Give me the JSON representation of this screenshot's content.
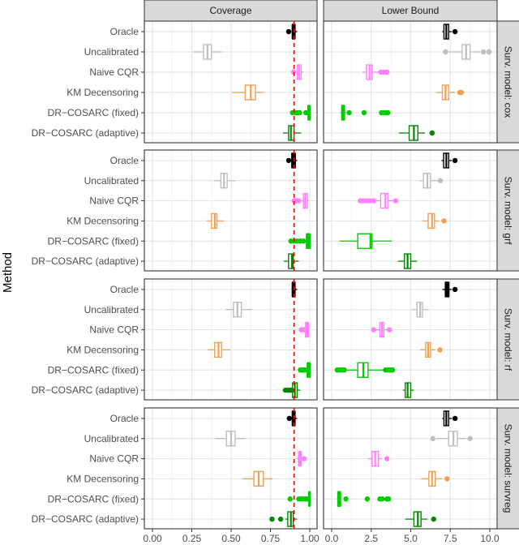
{
  "chart_data": {
    "type": "boxplot",
    "title": "",
    "ylabel": "Method",
    "xlabel": "",
    "methods": [
      "Oracle",
      "Uncalibrated",
      "Naive CQR",
      "KM Decensoring",
      "DR−COSARC (fixed)",
      "DR−COSARC (adaptive)"
    ],
    "method_colors": {
      "Oracle": "#000000",
      "Uncalibrated": "#bebebe",
      "Naive CQR": "#ff80ff",
      "KM Decensoring": "#f0a050",
      "DR−COSARC (fixed)": "#00cc00",
      "DR−COSARC (adaptive)": "#008800"
    },
    "columns": [
      {
        "label": "Coverage",
        "xlim": [
          -0.05,
          1.05
        ],
        "ticks": [
          0.0,
          0.25,
          0.5,
          0.75,
          1.0
        ],
        "tick_labels": [
          "0.00",
          "0.25",
          "0.50",
          "0.75",
          "1.00"
        ],
        "reference_line": {
          "x": 0.9,
          "color": "#ff0000",
          "style": "dashed"
        }
      },
      {
        "label": "Lower Bound",
        "xlim": [
          -0.5,
          10.5
        ],
        "ticks": [
          0.0,
          2.5,
          5.0,
          7.5,
          10.0
        ],
        "tick_labels": [
          "0.0",
          "2.5",
          "5.0",
          "7.5",
          "10.0"
        ]
      }
    ],
    "rows": [
      {
        "label": "Surv. model: cox",
        "coverage": [
          {
            "method": "Oracle",
            "wlo": 0.885,
            "q1": 0.89,
            "med": 0.897,
            "q3": 0.905,
            "whi": 0.92,
            "outliers": [
              0.866
            ]
          },
          {
            "method": "Uncalibrated",
            "wlo": 0.26,
            "q1": 0.325,
            "med": 0.35,
            "q3": 0.375,
            "whi": 0.44,
            "outliers": []
          },
          {
            "method": "Naive CQR",
            "wlo": 0.91,
            "q1": 0.92,
            "med": 0.932,
            "q3": 0.945,
            "whi": 0.96,
            "outliers": [
              0.897
            ]
          },
          {
            "method": "KM Decensoring",
            "wlo": 0.505,
            "q1": 0.59,
            "med": 0.625,
            "q3": 0.655,
            "whi": 0.705,
            "outliers": []
          },
          {
            "method": "DR−COSARC (fixed)",
            "wlo": 0.985,
            "q1": 0.99,
            "med": 0.995,
            "q3": 1.0,
            "whi": 1.0,
            "outliers": [
              0.89,
              0.905,
              0.92,
              0.935,
              0.975
            ]
          },
          {
            "method": "DR−COSARC (adaptive)",
            "wlo": 0.83,
            "q1": 0.865,
            "med": 0.88,
            "q3": 0.9,
            "whi": 0.945,
            "outliers": []
          }
        ],
        "lower_bound": [
          {
            "method": "Oracle",
            "wlo": 7.0,
            "q1": 7.1,
            "med": 7.25,
            "q3": 7.4,
            "whi": 7.6,
            "outliers": [
              7.8
            ]
          },
          {
            "method": "Uncalibrated",
            "wlo": 7.35,
            "q1": 8.25,
            "med": 8.5,
            "q3": 8.75,
            "whi": 9.4,
            "outliers": [
              7.2,
              9.6,
              9.95
            ]
          },
          {
            "method": "Naive CQR",
            "wlo": 1.95,
            "q1": 2.2,
            "med": 2.4,
            "q3": 2.55,
            "whi": 2.95,
            "outliers": [
              3.1,
              3.25,
              3.4,
              3.5
            ]
          },
          {
            "method": "KM Decensoring",
            "wlo": 6.6,
            "q1": 7.0,
            "med": 7.2,
            "q3": 7.4,
            "whi": 7.8,
            "outliers": [
              8.1,
              8.2
            ]
          },
          {
            "method": "DR−COSARC (fixed)",
            "wlo": 0.55,
            "q1": 0.65,
            "med": 0.72,
            "q3": 0.8,
            "whi": 0.9,
            "outliers": [
              1.1,
              2.05,
              3.15,
              3.3,
              3.45,
              3.55
            ]
          },
          {
            "method": "DR−COSARC (adaptive)",
            "wlo": 4.25,
            "q1": 4.9,
            "med": 5.2,
            "q3": 5.45,
            "whi": 5.9,
            "outliers": [
              6.35
            ]
          }
        ]
      },
      {
        "label": "Surv. model: grf",
        "coverage": [
          {
            "method": "Oracle",
            "wlo": 0.885,
            "q1": 0.887,
            "med": 0.897,
            "q3": 0.907,
            "whi": 0.92,
            "outliers": [
              0.866
            ]
          },
          {
            "method": "Uncalibrated",
            "wlo": 0.39,
            "q1": 0.435,
            "med": 0.455,
            "q3": 0.475,
            "whi": 0.53,
            "outliers": []
          },
          {
            "method": "Naive CQR",
            "wlo": 0.95,
            "q1": 0.96,
            "med": 0.972,
            "q3": 0.985,
            "whi": 0.995,
            "outliers": [
              0.9,
              0.91,
              0.92,
              0.93
            ]
          },
          {
            "method": "KM Decensoring",
            "wlo": 0.345,
            "q1": 0.375,
            "med": 0.397,
            "q3": 0.41,
            "whi": 0.455,
            "outliers": []
          },
          {
            "method": "DR−COSARC (fixed)",
            "wlo": 0.975,
            "q1": 0.98,
            "med": 0.99,
            "q3": 1.0,
            "whi": 1.0,
            "outliers": [
              0.88,
              0.9,
              0.92,
              0.94,
              0.96
            ]
          },
          {
            "method": "DR−COSARC (adaptive)",
            "wlo": 0.835,
            "q1": 0.865,
            "med": 0.887,
            "q3": 0.895,
            "whi": 0.93,
            "outliers": []
          }
        ],
        "lower_bound": [
          {
            "method": "Oracle",
            "wlo": 6.95,
            "q1": 7.08,
            "med": 7.25,
            "q3": 7.4,
            "whi": 7.6,
            "outliers": [
              7.8
            ]
          },
          {
            "method": "Uncalibrated",
            "wlo": 5.54,
            "q1": 5.8,
            "med": 6.05,
            "q3": 6.25,
            "whi": 6.7,
            "outliers": [
              6.87
            ]
          },
          {
            "method": "Naive CQR",
            "wlo": 2.8,
            "q1": 3.1,
            "med": 3.4,
            "q3": 3.55,
            "whi": 3.95,
            "outliers": [
              1.8,
              2.0,
              2.2,
              2.4,
              2.65,
              4.05
            ]
          },
          {
            "method": "KM Decensoring",
            "wlo": 5.75,
            "q1": 6.1,
            "med": 6.35,
            "q3": 6.5,
            "whi": 6.8,
            "outliers": [
              7.1
            ]
          },
          {
            "method": "DR−COSARC (fixed)",
            "wlo": 0.5,
            "q1": 1.65,
            "med": 2.45,
            "q3": 2.55,
            "whi": 3.8,
            "outliers": []
          },
          {
            "method": "DR−COSARC (adaptive)",
            "wlo": 4.2,
            "q1": 4.6,
            "med": 4.8,
            "q3": 5.0,
            "whi": 5.4,
            "outliers": []
          }
        ]
      },
      {
        "label": "Surv. model: rf",
        "coverage": [
          {
            "method": "Oracle",
            "wlo": 0.885,
            "q1": 0.89,
            "med": 0.897,
            "q3": 0.905,
            "whi": 0.92,
            "outliers": []
          },
          {
            "method": "Uncalibrated",
            "wlo": 0.465,
            "q1": 0.515,
            "med": 0.54,
            "q3": 0.565,
            "whi": 0.63,
            "outliers": []
          },
          {
            "method": "Naive CQR",
            "wlo": 0.97,
            "q1": 0.975,
            "med": 0.982,
            "q3": 0.99,
            "whi": 0.995,
            "outliers": [
              0.945,
              0.955,
              0.965
            ]
          },
          {
            "method": "KM Decensoring",
            "wlo": 0.35,
            "q1": 0.395,
            "med": 0.42,
            "q3": 0.44,
            "whi": 0.495,
            "outliers": []
          },
          {
            "method": "DR−COSARC (fixed)",
            "wlo": 0.98,
            "q1": 0.985,
            "med": 0.993,
            "q3": 1.0,
            "whi": 1.0,
            "outliers": [
              0.94,
              0.95,
              0.96,
              0.97
            ]
          },
          {
            "method": "DR−COSARC (adaptive)",
            "wlo": 0.887,
            "q1": 0.89,
            "med": 0.905,
            "q3": 0.92,
            "whi": 0.94,
            "outliers": [
              0.845,
              0.86,
              0.875,
              0.885
            ]
          }
        ],
        "lower_bound": [
          {
            "method": "Oracle",
            "wlo": 7.0,
            "q1": 7.2,
            "med": 7.3,
            "q3": 7.4,
            "whi": 7.6,
            "outliers": [
              7.8
            ]
          },
          {
            "method": "Uncalibrated",
            "wlo": 5.1,
            "q1": 5.4,
            "med": 5.6,
            "q3": 5.75,
            "whi": 6.15,
            "outliers": []
          },
          {
            "method": "Naive CQR",
            "wlo": 2.8,
            "q1": 3.05,
            "med": 3.18,
            "q3": 3.3,
            "whi": 3.55,
            "outliers": [
              2.65,
              3.65
            ]
          },
          {
            "method": "KM Decensoring",
            "wlo": 5.6,
            "q1": 5.95,
            "med": 6.1,
            "q3": 6.25,
            "whi": 6.55,
            "outliers": [
              6.85
            ]
          },
          {
            "method": "DR−COSARC (fixed)",
            "wlo": 0.9,
            "q1": 1.65,
            "med": 2.0,
            "q3": 2.3,
            "whi": 3.3,
            "outliers": [
              0.35,
              0.5,
              0.65,
              0.8,
              3.4,
              3.55,
              3.7,
              3.85
            ]
          },
          {
            "method": "DR−COSARC (adaptive)",
            "wlo": 4.5,
            "q1": 4.65,
            "med": 4.8,
            "q3": 5.0,
            "whi": 5.2,
            "outliers": []
          }
        ]
      },
      {
        "label": "Surv. model: survreg",
        "coverage": [
          {
            "method": "Oracle",
            "wlo": 0.885,
            "q1": 0.89,
            "med": 0.897,
            "q3": 0.905,
            "whi": 0.92,
            "outliers": [
              0.87
            ]
          },
          {
            "method": "Uncalibrated",
            "wlo": 0.4,
            "q1": 0.47,
            "med": 0.5,
            "q3": 0.525,
            "whi": 0.59,
            "outliers": []
          },
          {
            "method": "Naive CQR",
            "wlo": 0.917,
            "q1": 0.93,
            "med": 0.937,
            "q3": 0.945,
            "whi": 0.955,
            "outliers": [
              0.965
            ]
          },
          {
            "method": "KM Decensoring",
            "wlo": 0.57,
            "q1": 0.645,
            "med": 0.675,
            "q3": 0.705,
            "whi": 0.765,
            "outliers": []
          },
          {
            "method": "DR−COSARC (fixed)",
            "wlo": 0.99,
            "q1": 0.995,
            "med": 0.998,
            "q3": 1.0,
            "whi": 1.0,
            "outliers": [
              0.875,
              0.93,
              0.945,
              0.96,
              0.975,
              0.98
            ]
          },
          {
            "method": "DR−COSARC (adaptive)",
            "wlo": 0.845,
            "q1": 0.86,
            "med": 0.88,
            "q3": 0.895,
            "whi": 0.92,
            "outliers": [
              0.76,
              0.815
            ]
          }
        ],
        "lower_bound": [
          {
            "method": "Oracle",
            "wlo": 7.0,
            "q1": 7.1,
            "med": 7.25,
            "q3": 7.4,
            "whi": 7.6,
            "outliers": [
              7.8
            ]
          },
          {
            "method": "Uncalibrated",
            "wlo": 6.6,
            "q1": 7.4,
            "med": 7.7,
            "q3": 7.95,
            "whi": 8.5,
            "outliers": [
              6.4,
              8.75
            ]
          },
          {
            "method": "Naive CQR",
            "wlo": 2.3,
            "q1": 2.55,
            "med": 2.75,
            "q3": 2.95,
            "whi": 3.2,
            "outliers": [
              3.5
            ]
          },
          {
            "method": "KM Decensoring",
            "wlo": 5.65,
            "q1": 6.15,
            "med": 6.35,
            "q3": 6.55,
            "whi": 7.0,
            "outliers": [
              7.3
            ]
          },
          {
            "method": "DR−COSARC (fixed)",
            "wlo": 0.35,
            "q1": 0.4,
            "med": 0.47,
            "q3": 0.55,
            "whi": 0.6,
            "outliers": [
              0.9,
              2.25,
              3.05,
              3.2,
              3.5,
              3.6
            ]
          },
          {
            "method": "DR−COSARC (adaptive)",
            "wlo": 4.65,
            "q1": 5.2,
            "med": 5.45,
            "q3": 5.65,
            "whi": 6.05,
            "outliers": [
              6.45
            ]
          }
        ]
      }
    ],
    "legend": null,
    "grid": true
  }
}
